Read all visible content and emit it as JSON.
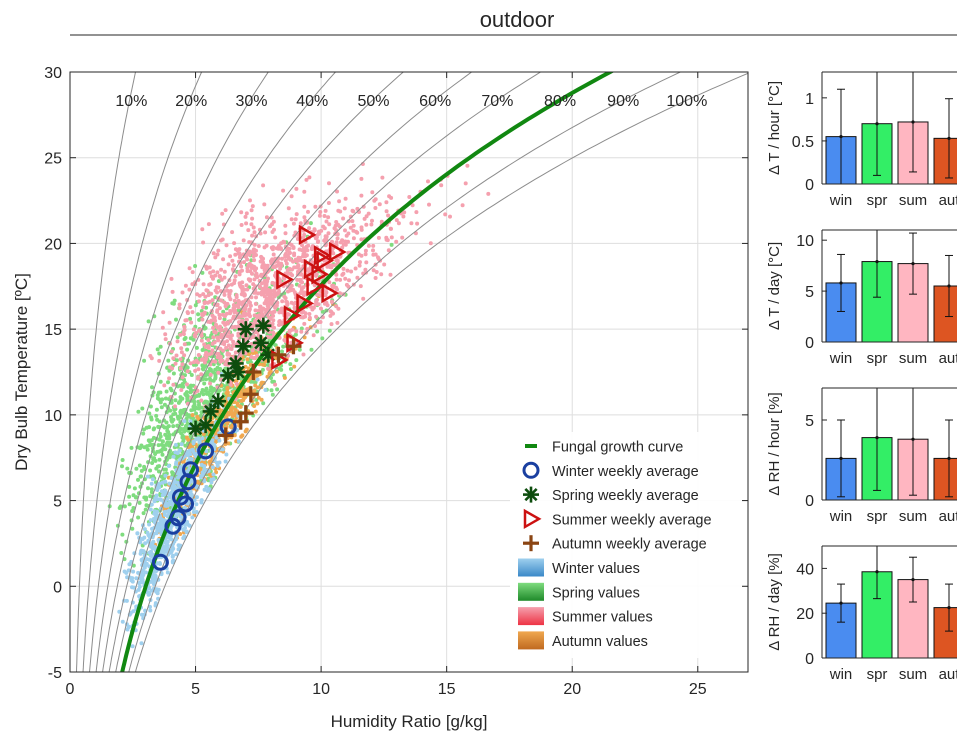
{
  "figure": {
    "title": "outdoor"
  },
  "colors": {
    "winter": "#4a8cf0",
    "spring": "#33ee66",
    "summer": "#ffb6c1",
    "autumn": "#dd5522",
    "curve": "#118811",
    "winter_marker": "#1a3fa0",
    "spring_marker": "#0e4d0e",
    "summer_marker": "#cc1111",
    "autumn_marker": "#8b4513",
    "winter_cloud": "#9fd0ee",
    "spring_cloud": "#7fdc7f",
    "summer_cloud": "#f5a0ae",
    "autumn_cloud": "#f0a850"
  },
  "chart_data": [
    {
      "type": "scatter",
      "title": "",
      "xlabel": "Humidity Ratio [g/kg]",
      "ylabel": "Dry Bulb Temperature [ºC]",
      "xlim": [
        0,
        27
      ],
      "ylim": [
        -5,
        30
      ],
      "xticks": [
        "0",
        "5",
        "10",
        "15",
        "20",
        "25"
      ],
      "yticks": [
        "-5",
        "0",
        "5",
        "10",
        "15",
        "20",
        "25",
        "30"
      ],
      "grid": true,
      "rh_curves": [
        "10%",
        "20%",
        "30%",
        "40%",
        "50%",
        "60%",
        "70%",
        "80%",
        "90%",
        "100%"
      ],
      "fungal_growth_curve_rh": 80,
      "legend_position": "bottom-right",
      "legend": [
        "Fungal growth curve",
        "Winter weekly average",
        "Spring weekly average",
        "Summer weekly average",
        "Autumn weekly average",
        "Winter values",
        "Spring values",
        "Summer values",
        "Autumn values"
      ],
      "series": [
        {
          "name": "Winter weekly average",
          "marker": "circle",
          "x": [
            3.6,
            4.1,
            4.3,
            4.4,
            4.6,
            4.7,
            4.8,
            5.4,
            6.3
          ],
          "y": [
            1.4,
            3.5,
            4.0,
            5.2,
            4.8,
            6.1,
            6.8,
            7.9,
            9.3
          ]
        },
        {
          "name": "Spring weekly average",
          "marker": "asterisk",
          "x": [
            5.0,
            5.4,
            5.6,
            5.9,
            6.3,
            6.6,
            6.7,
            6.9,
            7.0,
            7.6,
            7.7,
            7.9
          ],
          "y": [
            9.2,
            9.4,
            10.2,
            10.8,
            12.3,
            13.0,
            12.5,
            14.0,
            15.0,
            14.2,
            15.2,
            13.5
          ]
        },
        {
          "name": "Summer weekly average",
          "marker": "triangle-right",
          "x": [
            8.3,
            8.5,
            8.8,
            8.9,
            9.3,
            9.4,
            9.6,
            9.7,
            9.9,
            10.0,
            10.1,
            10.3,
            10.6
          ],
          "y": [
            13.2,
            17.9,
            15.8,
            14.2,
            16.5,
            20.5,
            18.5,
            17.5,
            18.2,
            19.3,
            19.0,
            17.1,
            19.5
          ]
        },
        {
          "name": "Autumn weekly average",
          "marker": "plus",
          "x": [
            6.2,
            6.8,
            7.0,
            7.2,
            7.3,
            8.3,
            8.9
          ],
          "y": [
            8.8,
            9.6,
            10.1,
            11.2,
            12.5,
            13.5,
            14.0
          ]
        }
      ]
    },
    {
      "type": "bar",
      "ylabel": "Δ T / hour [°C]",
      "categories": [
        "win",
        "spr",
        "sum",
        "aut"
      ],
      "values": [
        0.55,
        0.7,
        0.72,
        0.53
      ],
      "error": [
        0.55,
        0.6,
        0.58,
        0.46
      ],
      "ylim": [
        0,
        1.3
      ],
      "yticks": [
        "0",
        "0.5",
        "1"
      ],
      "ytick_values": [
        0,
        0.5,
        1
      ]
    },
    {
      "type": "bar",
      "ylabel": "Δ T / day [°C]",
      "categories": [
        "win",
        "spr",
        "sum",
        "aut"
      ],
      "values": [
        5.8,
        7.9,
        7.7,
        5.5
      ],
      "error": [
        2.8,
        3.5,
        3.0,
        3.0
      ],
      "ylim": [
        0,
        11
      ],
      "yticks": [
        "0",
        "5",
        "10"
      ],
      "ytick_values": [
        0,
        5,
        10
      ]
    },
    {
      "type": "bar",
      "ylabel": "Δ RH / hour [%]",
      "categories": [
        "win",
        "spr",
        "sum",
        "aut"
      ],
      "values": [
        2.6,
        3.9,
        3.8,
        2.6
      ],
      "error": [
        2.4,
        3.3,
        3.5,
        2.4
      ],
      "ylim": [
        0,
        7
      ],
      "yticks": [
        "0",
        "5"
      ],
      "ytick_values": [
        0,
        5
      ]
    },
    {
      "type": "bar",
      "ylabel": "Δ RH / day [%]",
      "categories": [
        "win",
        "spr",
        "sum",
        "aut"
      ],
      "values": [
        24.5,
        38.5,
        35.0,
        22.5
      ],
      "error": [
        8.5,
        12.0,
        10.0,
        10.5
      ],
      "ylim": [
        0,
        50
      ],
      "yticks": [
        "0",
        "20",
        "40"
      ],
      "ytick_values": [
        0,
        20,
        40
      ]
    }
  ]
}
